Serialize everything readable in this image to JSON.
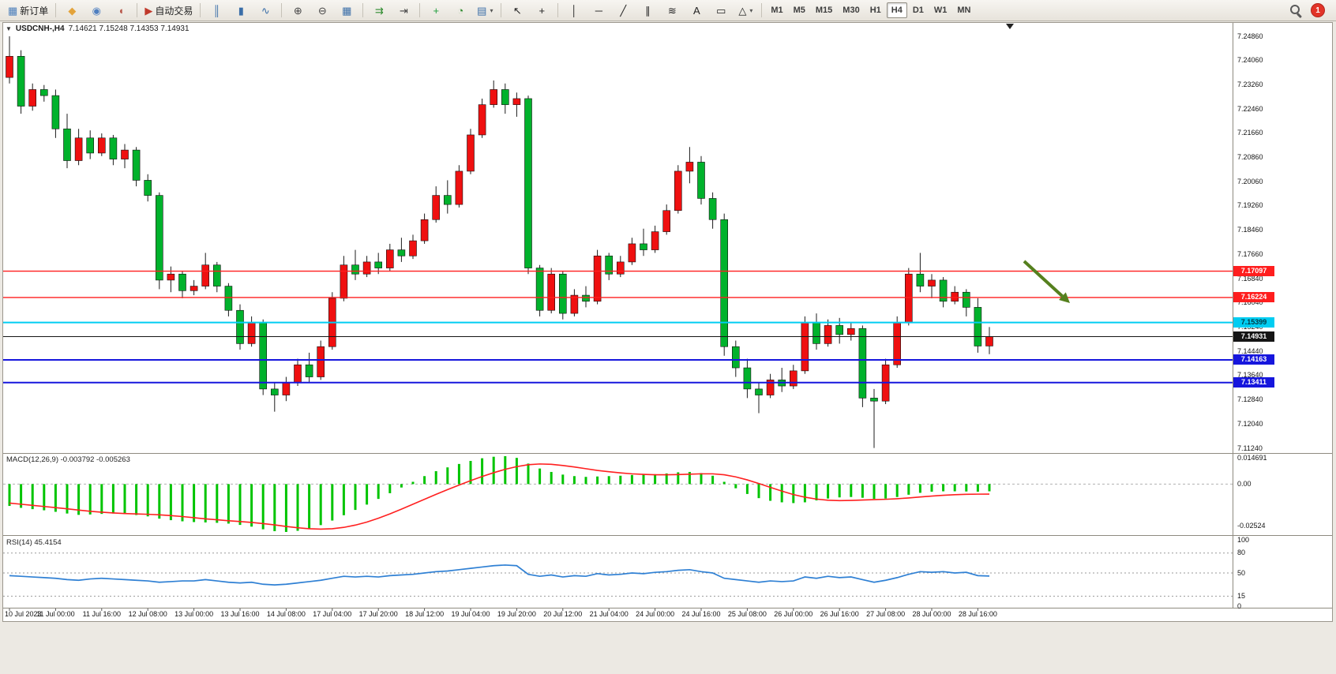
{
  "toolbar": {
    "groups": [
      [
        {
          "name": "new-order-button",
          "glyph": "▦",
          "color": "#4a7ebb",
          "label": "新订单"
        }
      ],
      [
        {
          "name": "metaeditor-icon",
          "glyph": "◆",
          "color": "#e3a33b"
        },
        {
          "name": "profile-icon",
          "glyph": "◉",
          "color": "#4f7fc0"
        },
        {
          "name": "support-icon",
          "glyph": "◖",
          "color": "#b8574a"
        }
      ],
      [
        {
          "name": "auto-trading-button",
          "glyph": "▶",
          "color": "#c0392b",
          "label": "自动交易"
        }
      ],
      [
        {
          "name": "bar-chart-icon",
          "glyph": "║",
          "color": "#3a6ea8"
        },
        {
          "name": "candlestick-chart-icon",
          "glyph": "▮",
          "color": "#3a6ea8"
        },
        {
          "name": "line-chart-icon",
          "glyph": "∿",
          "color": "#3a6ea8"
        }
      ],
      [
        {
          "name": "zoom-in-icon",
          "glyph": "⊕",
          "color": "#454545"
        },
        {
          "name": "zoom-out-icon",
          "glyph": "⊖",
          "color": "#454545"
        },
        {
          "name": "tile-windows-icon",
          "glyph": "▦",
          "color": "#3a6ea8"
        }
      ],
      [
        {
          "name": "auto-scroll-icon",
          "glyph": "⇉",
          "color": "#2e8b2e"
        },
        {
          "name": "chart-shift-icon",
          "glyph": "⇥",
          "color": "#454545"
        }
      ],
      [
        {
          "name": "indicators-icon",
          "glyph": "+",
          "color": "#1f9e3c"
        },
        {
          "name": "periods-icon",
          "glyph": "◔",
          "color": "#2e8b2e"
        },
        {
          "name": "templates-icon",
          "glyph": "▤",
          "color": "#3a6ea8",
          "dropdown": true
        }
      ],
      [
        {
          "name": "cursor-icon",
          "glyph": "↖",
          "color": "#222222"
        },
        {
          "name": "crosshair-icon",
          "glyph": "+",
          "color": "#222222"
        }
      ],
      [
        {
          "name": "vertical-line-icon",
          "glyph": "│",
          "color": "#222222"
        },
        {
          "name": "horizontal-line-icon",
          "glyph": "─",
          "color": "#222222"
        },
        {
          "name": "trendline-icon",
          "glyph": "╱",
          "color": "#222222"
        },
        {
          "name": "channel-icon",
          "glyph": "∥",
          "color": "#222222"
        },
        {
          "name": "fibonacci-icon",
          "glyph": "≋",
          "color": "#222222"
        },
        {
          "name": "text-icon",
          "glyph": "A",
          "color": "#222222"
        },
        {
          "name": "arrow-label-icon",
          "glyph": "▭",
          "color": "#222222"
        },
        {
          "name": "shapes-icon",
          "glyph": "△",
          "color": "#222222",
          "dropdown": true
        }
      ]
    ],
    "timeframes": [
      "M1",
      "M5",
      "M15",
      "M30",
      "H1",
      "H4",
      "D1",
      "W1",
      "MN"
    ],
    "active_timeframe": "H4",
    "badge": "1"
  },
  "chart": {
    "one_click_glyph": "▼",
    "symbol_period": "USDCNH-,H4",
    "ohlc": "7.14621 7.15248 7.14353 7.14931"
  },
  "price_axis": [
    "7.24860",
    "7.24060",
    "7.23260",
    "7.22460",
    "7.21660",
    "7.20860",
    "7.20060",
    "7.19260",
    "7.18460",
    "7.17660",
    "7.16840",
    "7.16040",
    "7.15240",
    "7.14440",
    "7.13640",
    "7.12840",
    "7.12040",
    "7.11240"
  ],
  "levels": [
    {
      "name": "resistance-line-1",
      "price": 7.17097,
      "label": "7.17097",
      "color": "#ff1e1e",
      "thickness": 1.4,
      "tag_text_color": "#ffffff"
    },
    {
      "name": "resistance-line-2",
      "price": 7.16224,
      "label": "7.16224",
      "color": "#ff1e1e",
      "thickness": 1.4,
      "tag_text_color": "#ffffff"
    },
    {
      "name": "support-line-cyan",
      "price": 7.15399,
      "label": "7.15399",
      "color": "#00cdf2",
      "thickness": 2,
      "tag_text_color": "#003844"
    },
    {
      "name": "bid-price-line",
      "price": 7.14931,
      "label": "7.14931",
      "color": "#151515",
      "thickness": 1,
      "tag_text_color": "#ffffff"
    },
    {
      "name": "support-line-blue-1",
      "price": 7.14163,
      "label": "7.14163",
      "color": "#1616dd",
      "thickness": 2,
      "tag_text_color": "#ffffff"
    },
    {
      "name": "support-line-blue-2",
      "price": 7.13411,
      "label": "7.13411",
      "color": "#1616dd",
      "thickness": 2,
      "tag_text_color": "#ffffff"
    }
  ],
  "macd": {
    "label": "MACD(12,26,9) -0.003792 -0.005263",
    "axis": [
      "0.014691",
      "0.00",
      "-0.02524"
    ]
  },
  "rsi": {
    "label": "RSI(14) 45.4154",
    "axis": [
      "100",
      "80",
      "50",
      "15",
      "0"
    ],
    "levels": [
      80,
      50,
      15
    ]
  },
  "time_axis": [
    "10 Jul 2023",
    "11 Jul 00:00",
    "11 Jul 16:00",
    "12 Jul 08:00",
    "13 Jul 00:00",
    "13 Jul 16:00",
    "14 Jul 08:00",
    "17 Jul 04:00",
    "17 Jul 20:00",
    "18 Jul 12:00",
    "19 Jul 04:00",
    "19 Jul 20:00",
    "20 Jul 12:00",
    "21 Jul 04:00",
    "24 Jul 00:00",
    "24 Jul 16:00",
    "25 Jul 08:00",
    "26 Jul 00:00",
    "26 Jul 16:00",
    "27 Jul 08:00",
    "28 Jul 00:00",
    "28 Jul 16:00"
  ],
  "arrow": {
    "from": [
      1297,
      331
    ],
    "to": [
      1355,
      384
    ],
    "color": "#55801e"
  },
  "chart_data": {
    "type": "candlestick",
    "symbol": "USDCNH",
    "timeframe": "H4",
    "up_color": "#ef1010",
    "down_color": "#00b22c",
    "price_range": [
      7.1124,
      7.2486
    ],
    "candles": [
      [
        7.235,
        7.2486,
        7.233,
        7.242
      ],
      [
        7.242,
        7.244,
        7.223,
        7.2255
      ],
      [
        7.2255,
        7.233,
        7.224,
        7.231
      ],
      [
        7.231,
        7.2325,
        7.227,
        7.229
      ],
      [
        7.229,
        7.231,
        7.215,
        7.218
      ],
      [
        7.218,
        7.223,
        7.205,
        7.2075
      ],
      [
        7.2075,
        7.218,
        7.206,
        7.215
      ],
      [
        7.215,
        7.2175,
        7.208,
        7.21
      ],
      [
        7.21,
        7.2165,
        7.209,
        7.215
      ],
      [
        7.215,
        7.216,
        7.206,
        7.208
      ],
      [
        7.208,
        7.213,
        7.205,
        7.211
      ],
      [
        7.211,
        7.212,
        7.199,
        7.201
      ],
      [
        7.201,
        7.203,
        7.194,
        7.196
      ],
      [
        7.196,
        7.197,
        7.165,
        7.168
      ],
      [
        7.168,
        7.1725,
        7.164,
        7.17
      ],
      [
        7.17,
        7.171,
        7.162,
        7.1645
      ],
      [
        7.1645,
        7.168,
        7.163,
        7.166
      ],
      [
        7.166,
        7.177,
        7.165,
        7.173
      ],
      [
        7.173,
        7.174,
        7.164,
        7.166
      ],
      [
        7.166,
        7.167,
        7.156,
        7.158
      ],
      [
        7.158,
        7.16,
        7.145,
        7.147
      ],
      [
        7.147,
        7.156,
        7.146,
        7.154
      ],
      [
        7.154,
        7.155,
        7.13,
        7.132
      ],
      [
        7.132,
        7.134,
        7.1245,
        7.13
      ],
      [
        7.13,
        7.136,
        7.128,
        7.134
      ],
      [
        7.134,
        7.142,
        7.133,
        7.14
      ],
      [
        7.14,
        7.144,
        7.134,
        7.136
      ],
      [
        7.136,
        7.148,
        7.135,
        7.146
      ],
      [
        7.146,
        7.164,
        7.145,
        7.162
      ],
      [
        7.162,
        7.176,
        7.161,
        7.173
      ],
      [
        7.173,
        7.178,
        7.168,
        7.17
      ],
      [
        7.17,
        7.176,
        7.169,
        7.174
      ],
      [
        7.174,
        7.177,
        7.17,
        7.172
      ],
      [
        7.172,
        7.18,
        7.171,
        7.178
      ],
      [
        7.178,
        7.182,
        7.174,
        7.176
      ],
      [
        7.176,
        7.183,
        7.175,
        7.181
      ],
      [
        7.181,
        7.19,
        7.18,
        7.188
      ],
      [
        7.188,
        7.199,
        7.187,
        7.196
      ],
      [
        7.196,
        7.201,
        7.19,
        7.193
      ],
      [
        7.193,
        7.206,
        7.192,
        7.204
      ],
      [
        7.204,
        7.218,
        7.203,
        7.216
      ],
      [
        7.216,
        7.228,
        7.215,
        7.226
      ],
      [
        7.226,
        7.234,
        7.225,
        7.231
      ],
      [
        7.231,
        7.233,
        7.223,
        7.226
      ],
      [
        7.226,
        7.23,
        7.222,
        7.228
      ],
      [
        7.228,
        7.229,
        7.17,
        7.172
      ],
      [
        7.172,
        7.173,
        7.156,
        7.158
      ],
      [
        7.158,
        7.172,
        7.157,
        7.17
      ],
      [
        7.17,
        7.171,
        7.155,
        7.157
      ],
      [
        7.157,
        7.165,
        7.156,
        7.163
      ],
      [
        7.163,
        7.166,
        7.159,
        7.161
      ],
      [
        7.161,
        7.178,
        7.16,
        7.176
      ],
      [
        7.176,
        7.177,
        7.168,
        7.17
      ],
      [
        7.17,
        7.176,
        7.169,
        7.174
      ],
      [
        7.174,
        7.182,
        7.173,
        7.18
      ],
      [
        7.18,
        7.185,
        7.176,
        7.178
      ],
      [
        7.178,
        7.186,
        7.177,
        7.184
      ],
      [
        7.184,
        7.193,
        7.183,
        7.191
      ],
      [
        7.191,
        7.206,
        7.19,
        7.204
      ],
      [
        7.204,
        7.212,
        7.2,
        7.207
      ],
      [
        7.207,
        7.209,
        7.193,
        7.195
      ],
      [
        7.195,
        7.197,
        7.185,
        7.188
      ],
      [
        7.188,
        7.19,
        7.143,
        7.146
      ],
      [
        7.146,
        7.148,
        7.136,
        7.139
      ],
      [
        7.139,
        7.142,
        7.129,
        7.132
      ],
      [
        7.132,
        7.134,
        7.124,
        7.13
      ],
      [
        7.13,
        7.137,
        7.129,
        7.135
      ],
      [
        7.135,
        7.139,
        7.131,
        7.133
      ],
      [
        7.133,
        7.14,
        7.132,
        7.138
      ],
      [
        7.138,
        7.156,
        7.137,
        7.154
      ],
      [
        7.154,
        7.157,
        7.145,
        7.147
      ],
      [
        7.147,
        7.155,
        7.146,
        7.153
      ],
      [
        7.153,
        7.1555,
        7.147,
        7.15
      ],
      [
        7.15,
        7.154,
        7.148,
        7.152
      ],
      [
        7.152,
        7.153,
        7.126,
        7.129
      ],
      [
        7.129,
        7.132,
        7.1125,
        7.128
      ],
      [
        7.128,
        7.142,
        7.127,
        7.14
      ],
      [
        7.14,
        7.156,
        7.139,
        7.154
      ],
      [
        7.154,
        7.172,
        7.153,
        7.17
      ],
      [
        7.17,
        7.177,
        7.164,
        7.166
      ],
      [
        7.166,
        7.17,
        7.162,
        7.168
      ],
      [
        7.168,
        7.169,
        7.159,
        7.161
      ],
      [
        7.161,
        7.166,
        7.16,
        7.164
      ],
      [
        7.164,
        7.165,
        7.156,
        7.159
      ],
      [
        7.159,
        7.162,
        7.144,
        7.1462
      ],
      [
        7.14621,
        7.15248,
        7.14353,
        7.14931
      ]
    ],
    "macd_histogram": [
      -0.0115,
      -0.0125,
      -0.0132,
      -0.0138,
      -0.0146,
      -0.0155,
      -0.0162,
      -0.016,
      -0.0157,
      -0.0155,
      -0.0158,
      -0.0163,
      -0.017,
      -0.0182,
      -0.019,
      -0.0196,
      -0.02,
      -0.0202,
      -0.0204,
      -0.0208,
      -0.0215,
      -0.0224,
      -0.0238,
      -0.0248,
      -0.0252,
      -0.0246,
      -0.0234,
      -0.0216,
      -0.0192,
      -0.0164,
      -0.0136,
      -0.0108,
      -0.0078,
      -0.0048,
      -0.0018,
      0.0012,
      0.0042,
      0.0068,
      0.0088,
      0.0106,
      0.0122,
      0.0136,
      0.0144,
      0.0147,
      0.0138,
      0.0108,
      0.0082,
      0.0064,
      0.005,
      0.0042,
      0.0038,
      0.004,
      0.0042,
      0.0044,
      0.0048,
      0.005,
      0.0052,
      0.0056,
      0.0062,
      0.0064,
      0.0058,
      0.0044,
      0.0012,
      -0.0022,
      -0.0052,
      -0.0074,
      -0.0088,
      -0.0096,
      -0.01,
      -0.0096,
      -0.0086,
      -0.0076,
      -0.007,
      -0.0068,
      -0.0072,
      -0.0078,
      -0.0076,
      -0.0068,
      -0.0056,
      -0.0046,
      -0.004,
      -0.0038,
      -0.0038,
      -0.0039,
      -0.004,
      -0.0038
    ],
    "macd_signal": [
      -0.01,
      -0.0106,
      -0.0112,
      -0.0118,
      -0.0124,
      -0.013,
      -0.0137,
      -0.0143,
      -0.0148,
      -0.0152,
      -0.0155,
      -0.0157,
      -0.0159,
      -0.0162,
      -0.0166,
      -0.0171,
      -0.0177,
      -0.0183,
      -0.0188,
      -0.0193,
      -0.0197,
      -0.0202,
      -0.0208,
      -0.0215,
      -0.0223,
      -0.023,
      -0.0235,
      -0.0237,
      -0.0235,
      -0.0228,
      -0.0216,
      -0.02,
      -0.018,
      -0.0157,
      -0.0132,
      -0.0106,
      -0.008,
      -0.0054,
      -0.0029,
      -0.0005,
      0.0018,
      0.004,
      0.006,
      0.0078,
      0.0092,
      0.0102,
      0.0106,
      0.0104,
      0.0098,
      0.009,
      0.0081,
      0.0072,
      0.0065,
      0.0059,
      0.0054,
      0.0051,
      0.0049,
      0.0049,
      0.005,
      0.0052,
      0.0054,
      0.0054,
      0.0049,
      0.0038,
      0.0022,
      0.0003,
      -0.0017,
      -0.0037,
      -0.0055,
      -0.0069,
      -0.0079,
      -0.0085,
      -0.0087,
      -0.0086,
      -0.0084,
      -0.0082,
      -0.008,
      -0.0077,
      -0.0073,
      -0.0068,
      -0.0063,
      -0.0059,
      -0.0056,
      -0.0054,
      -0.0053,
      -0.00526
    ],
    "rsi_values": [
      46,
      45,
      44,
      43,
      42,
      40,
      39,
      41,
      42,
      41,
      40,
      39,
      38,
      36,
      37,
      38,
      38,
      40,
      38,
      36,
      35,
      36,
      33,
      32,
      33,
      35,
      37,
      39,
      42,
      45,
      44,
      45,
      44,
      46,
      47,
      48,
      50,
      52,
      53,
      55,
      57,
      59,
      61,
      62,
      61,
      48,
      45,
      47,
      44,
      46,
      45,
      49,
      47,
      48,
      50,
      49,
      51,
      52,
      54,
      55,
      52,
      50,
      42,
      40,
      38,
      36,
      38,
      37,
      38,
      44,
      42,
      45,
      43,
      44,
      40,
      36,
      39,
      43,
      48,
      52,
      51,
      52,
      50,
      51,
      46,
      45.4
    ],
    "macd_axis_range": [
      -0.0252,
      0.0147
    ],
    "rsi_axis_range": [
      0,
      100
    ]
  }
}
